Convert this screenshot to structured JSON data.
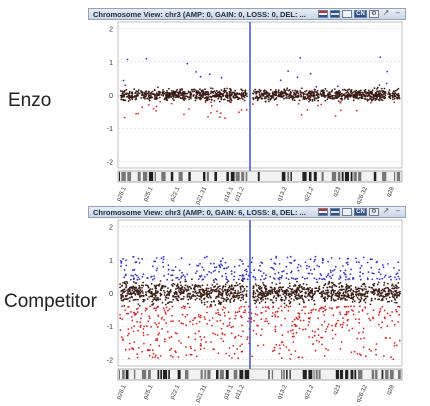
{
  "labels": {
    "top": "Enzo",
    "bottom": "Competitor"
  },
  "panels": [
    {
      "title": "Chromosome View: chr3 (AMP: 0, GAIN: 0, LOSS: 0, DEL: ...",
      "toolbar_icons": [
        "flag-icon",
        "grid-icon",
        "chart-icon",
        "cnv-icon",
        "settings-icon",
        "pin-icon",
        "minimize-icon"
      ]
    },
    {
      "title": "Chromosome View: chr3 (AMP: 0, GAIN: 6, LOSS: 8, DEL: ...",
      "toolbar_icons": [
        "flag-icon",
        "grid-icon",
        "chart-icon",
        "cnv-icon",
        "settings-icon",
        "pin-icon",
        "minimize-icon"
      ]
    }
  ],
  "toolbar_glyphs": {
    "cnv": "CN",
    "pin": "↗",
    "minimize": "–"
  },
  "colors": {
    "normal": "#3a1c14",
    "gain": "#3030d8",
    "loss": "#e02020",
    "centromere": "#4a5ad8",
    "grid": "#cccccc"
  },
  "chart_data": [
    {
      "type": "scatter",
      "title": "Chromosome View: chr3 (AMP: 0, GAIN: 0, LOSS: 0, DEL: ...",
      "ylim": [
        -2.2,
        2.2
      ],
      "yticks": [
        2,
        1,
        0,
        -1,
        -2
      ],
      "bands": [
        "p26.1",
        "p25.1",
        "p22.1",
        "p21.31",
        "p14.1",
        "p11.2",
        "q13.2",
        "q21.2",
        "q23",
        "q26.32",
        "q28"
      ],
      "centromere": "p11.2",
      "normal_band": [
        -0.25,
        0.25
      ],
      "gain": {
        "count": 20
      },
      "loss": {
        "count": 40
      }
    },
    {
      "type": "scatter",
      "title": "Chromosome View: chr3 (AMP: 0, GAIN: 6, LOSS: 8, DEL: ...",
      "ylim": [
        -2.2,
        2.2
      ],
      "yticks": [
        2,
        1,
        0,
        -1,
        -2
      ],
      "bands": [
        "p26.1",
        "p25.1",
        "p22.1",
        "p21.31",
        "p14.1",
        "p11.2",
        "q13.2",
        "q21.2",
        "q23",
        "q26.32",
        "q28"
      ],
      "centromere": "p11.2",
      "normal_band": [
        -0.45,
        0.45
      ],
      "gain": {
        "count": 320
      },
      "loss": {
        "count": 520
      }
    }
  ]
}
